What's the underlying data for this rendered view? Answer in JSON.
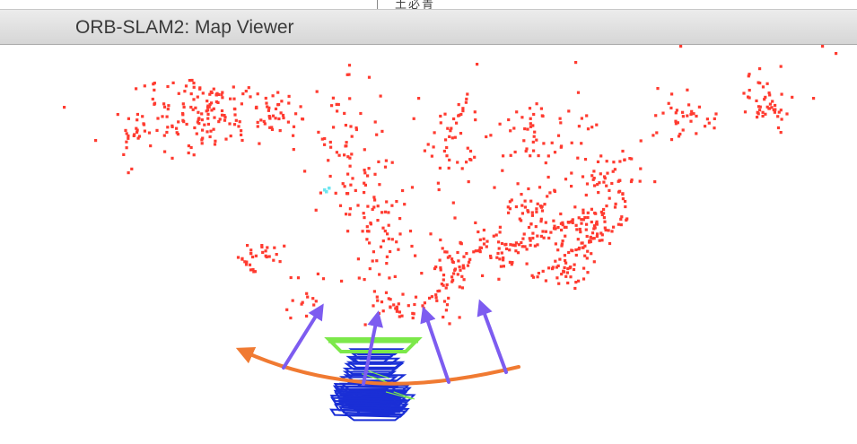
{
  "window": {
    "title": "ORB-SLAM2: Map Viewer",
    "background_fragment": "土必青"
  },
  "viewer": {
    "map_point_color": "#ff3b30",
    "reference_point_color": "#6ee6f0",
    "keyframe_color": "#1a2fd6",
    "current_camera_color": "#7ce84a",
    "annotation_arc_color": "#f07a32",
    "annotation_arrow_color": "#7d5cf0"
  }
}
